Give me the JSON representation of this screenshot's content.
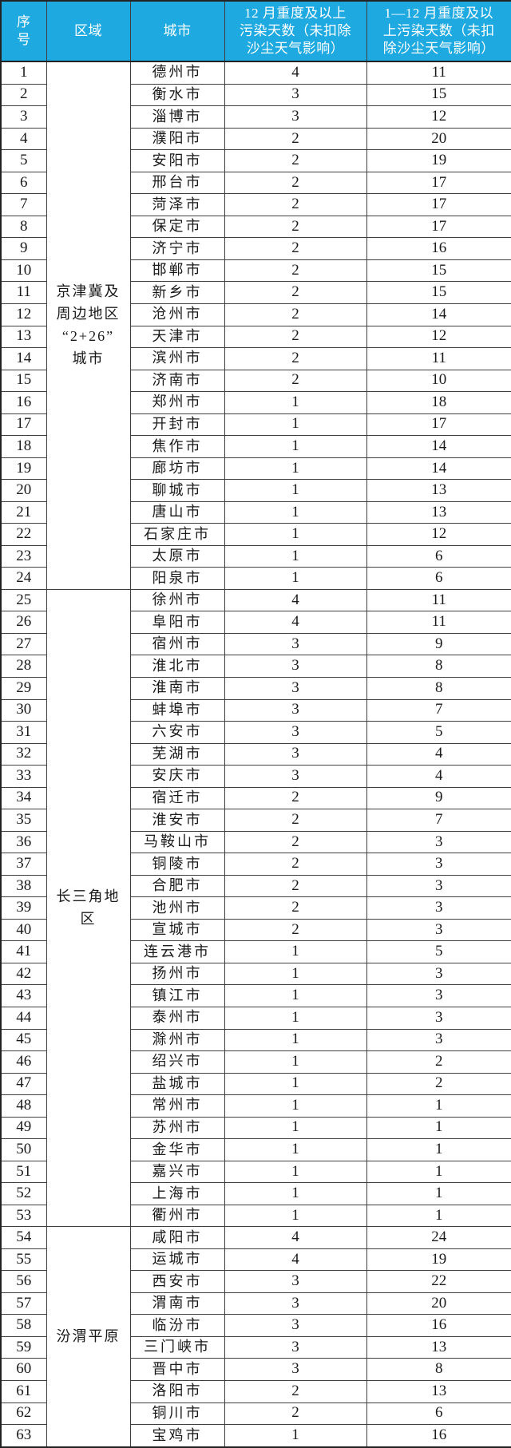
{
  "colors": {
    "header_bg": "#1FA9E1",
    "header_text": "#FFFFFF",
    "border": "#3F3F3F",
    "body_text": "#1A1A1A",
    "row_bg": "#FFFFFF"
  },
  "table": {
    "header": [
      {
        "name": "serial",
        "label": "序号",
        "lines": [
          "序",
          "号"
        ]
      },
      {
        "name": "region",
        "label": "区域",
        "lines": [
          "区域"
        ]
      },
      {
        "name": "city",
        "label": "城市",
        "lines": [
          "城市"
        ]
      },
      {
        "name": "dec_days",
        "label": "12 月重度及以上污染天数（未扣除沙尘天气影响）",
        "lines": [
          "12 月重度及以上",
          "污染天数（未扣除",
          "沙尘天气影响）"
        ]
      },
      {
        "name": "annual_days",
        "label": "1—12 月重度及以上污染天数（未扣除沙尘天气影响）",
        "lines": [
          "1—12 月重度及以",
          "上污染天数（未扣",
          "除沙尘天气影响）"
        ]
      }
    ]
  },
  "chart_data": {
    "type": "table",
    "columns": [
      "序号",
      "区域",
      "城市",
      "12 月重度及以上污染天数（未扣除沙尘天气影响）",
      "1—12 月重度及以上污染天数（未扣除沙尘天气影响）"
    ],
    "regions": [
      {
        "region": "京津冀及周边地区“2+26”城市",
        "region_lines": [
          "京津冀及",
          "周边地区",
          "“2+26”",
          "城市"
        ],
        "rows": [
          [
            1,
            "德州市",
            4,
            11
          ],
          [
            2,
            "衡水市",
            3,
            15
          ],
          [
            3,
            "淄博市",
            3,
            12
          ],
          [
            4,
            "濮阳市",
            2,
            20
          ],
          [
            5,
            "安阳市",
            2,
            19
          ],
          [
            6,
            "邢台市",
            2,
            17
          ],
          [
            7,
            "菏泽市",
            2,
            17
          ],
          [
            8,
            "保定市",
            2,
            17
          ],
          [
            9,
            "济宁市",
            2,
            16
          ],
          [
            10,
            "邯郸市",
            2,
            15
          ],
          [
            11,
            "新乡市",
            2,
            15
          ],
          [
            12,
            "沧州市",
            2,
            14
          ],
          [
            13,
            "天津市",
            2,
            12
          ],
          [
            14,
            "滨州市",
            2,
            11
          ],
          [
            15,
            "济南市",
            2,
            10
          ],
          [
            16,
            "郑州市",
            1,
            18
          ],
          [
            17,
            "开封市",
            1,
            17
          ],
          [
            18,
            "焦作市",
            1,
            14
          ],
          [
            19,
            "廊坊市",
            1,
            14
          ],
          [
            20,
            "聊城市",
            1,
            13
          ],
          [
            21,
            "唐山市",
            1,
            13
          ],
          [
            22,
            "石家庄市",
            1,
            12
          ],
          [
            23,
            "太原市",
            1,
            6
          ],
          [
            24,
            "阳泉市",
            1,
            6
          ]
        ]
      },
      {
        "region": "长三角地区",
        "region_lines": [
          "长三角地",
          "区"
        ],
        "rows": [
          [
            25,
            "徐州市",
            4,
            11
          ],
          [
            26,
            "阜阳市",
            4,
            11
          ],
          [
            27,
            "宿州市",
            3,
            9
          ],
          [
            28,
            "淮北市",
            3,
            8
          ],
          [
            29,
            "淮南市",
            3,
            8
          ],
          [
            30,
            "蚌埠市",
            3,
            7
          ],
          [
            31,
            "六安市",
            3,
            5
          ],
          [
            32,
            "芜湖市",
            3,
            4
          ],
          [
            33,
            "安庆市",
            3,
            4
          ],
          [
            34,
            "宿迁市",
            2,
            9
          ],
          [
            35,
            "淮安市",
            2,
            7
          ],
          [
            36,
            "马鞍山市",
            2,
            3
          ],
          [
            37,
            "铜陵市",
            2,
            3
          ],
          [
            38,
            "合肥市",
            2,
            3
          ],
          [
            39,
            "池州市",
            2,
            3
          ],
          [
            40,
            "宣城市",
            2,
            3
          ],
          [
            41,
            "连云港市",
            1,
            5
          ],
          [
            42,
            "扬州市",
            1,
            3
          ],
          [
            43,
            "镇江市",
            1,
            3
          ],
          [
            44,
            "泰州市",
            1,
            3
          ],
          [
            45,
            "滁州市",
            1,
            3
          ],
          [
            46,
            "绍兴市",
            1,
            2
          ],
          [
            47,
            "盐城市",
            1,
            2
          ],
          [
            48,
            "常州市",
            1,
            1
          ],
          [
            49,
            "苏州市",
            1,
            1
          ],
          [
            50,
            "金华市",
            1,
            1
          ],
          [
            51,
            "嘉兴市",
            1,
            1
          ],
          [
            52,
            "上海市",
            1,
            1
          ],
          [
            53,
            "衢州市",
            1,
            1
          ]
        ]
      },
      {
        "region": "汾渭平原",
        "region_lines": [
          "汾渭平原"
        ],
        "rows": [
          [
            54,
            "咸阳市",
            4,
            24
          ],
          [
            55,
            "运城市",
            4,
            19
          ],
          [
            56,
            "西安市",
            3,
            22
          ],
          [
            57,
            "渭南市",
            3,
            20
          ],
          [
            58,
            "临汾市",
            3,
            16
          ],
          [
            59,
            "三门峡市",
            3,
            13
          ],
          [
            60,
            "晋中市",
            3,
            8
          ],
          [
            61,
            "洛阳市",
            2,
            13
          ],
          [
            62,
            "铜川市",
            2,
            6
          ],
          [
            63,
            "宝鸡市",
            1,
            16
          ]
        ]
      }
    ]
  }
}
